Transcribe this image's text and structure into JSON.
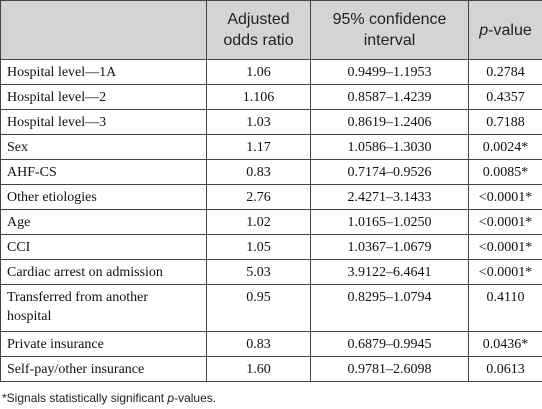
{
  "table": {
    "header": {
      "col0": "",
      "col1_line1": "Adjusted",
      "col1_line2": "odds ratio",
      "col2_line1": "95% confidence",
      "col2_line2": "interval",
      "col3_p": "p",
      "col3_rest": "-value"
    },
    "rows": [
      {
        "label": "Hospital level—1A",
        "or": "1.06",
        "ci": "0.9499–1.1953",
        "p": "0.2784"
      },
      {
        "label": "Hospital level—2",
        "or": "1.106",
        "ci": "0.8587–1.4239",
        "p": "0.4357"
      },
      {
        "label": "Hospital level—3",
        "or": "1.03",
        "ci": "0.8619–1.2406",
        "p": "0.7188"
      },
      {
        "label": "Sex",
        "or": "1.17",
        "ci": "1.0586–1.3030",
        "p": "0.0024*"
      },
      {
        "label": "AHF-CS",
        "or": "0.83",
        "ci": "0.7174–0.9526",
        "p": "0.0085*"
      },
      {
        "label": "Other etiologies",
        "or": "2.76",
        "ci": "2.4271–3.1433",
        "p": "<0.0001*"
      },
      {
        "label": "Age",
        "or": "1.02",
        "ci": "1.0165–1.0250",
        "p": "<0.0001*"
      },
      {
        "label": "CCI",
        "or": "1.05",
        "ci": "1.0367–1.0679",
        "p": "<0.0001*"
      },
      {
        "label": "Cardiac arrest on admission",
        "or": "5.03",
        "ci": "3.9122–6.4641",
        "p": "<0.0001*"
      },
      {
        "label_line1": "Transferred from another",
        "label_line2": "hospital",
        "or": "0.95",
        "ci": "0.8295–1.0794",
        "p": "0.4110"
      },
      {
        "label": "Private insurance",
        "or": "0.83",
        "ci": "0.6879–0.9945",
        "p": "0.0436*"
      },
      {
        "label": "Self-pay/other insurance",
        "or": "1.60",
        "ci": "0.9781–2.6098",
        "p": "0.0613"
      }
    ]
  },
  "footnote": {
    "prefix": "*Signals statistically significant ",
    "p": "p",
    "suffix": "-values."
  }
}
